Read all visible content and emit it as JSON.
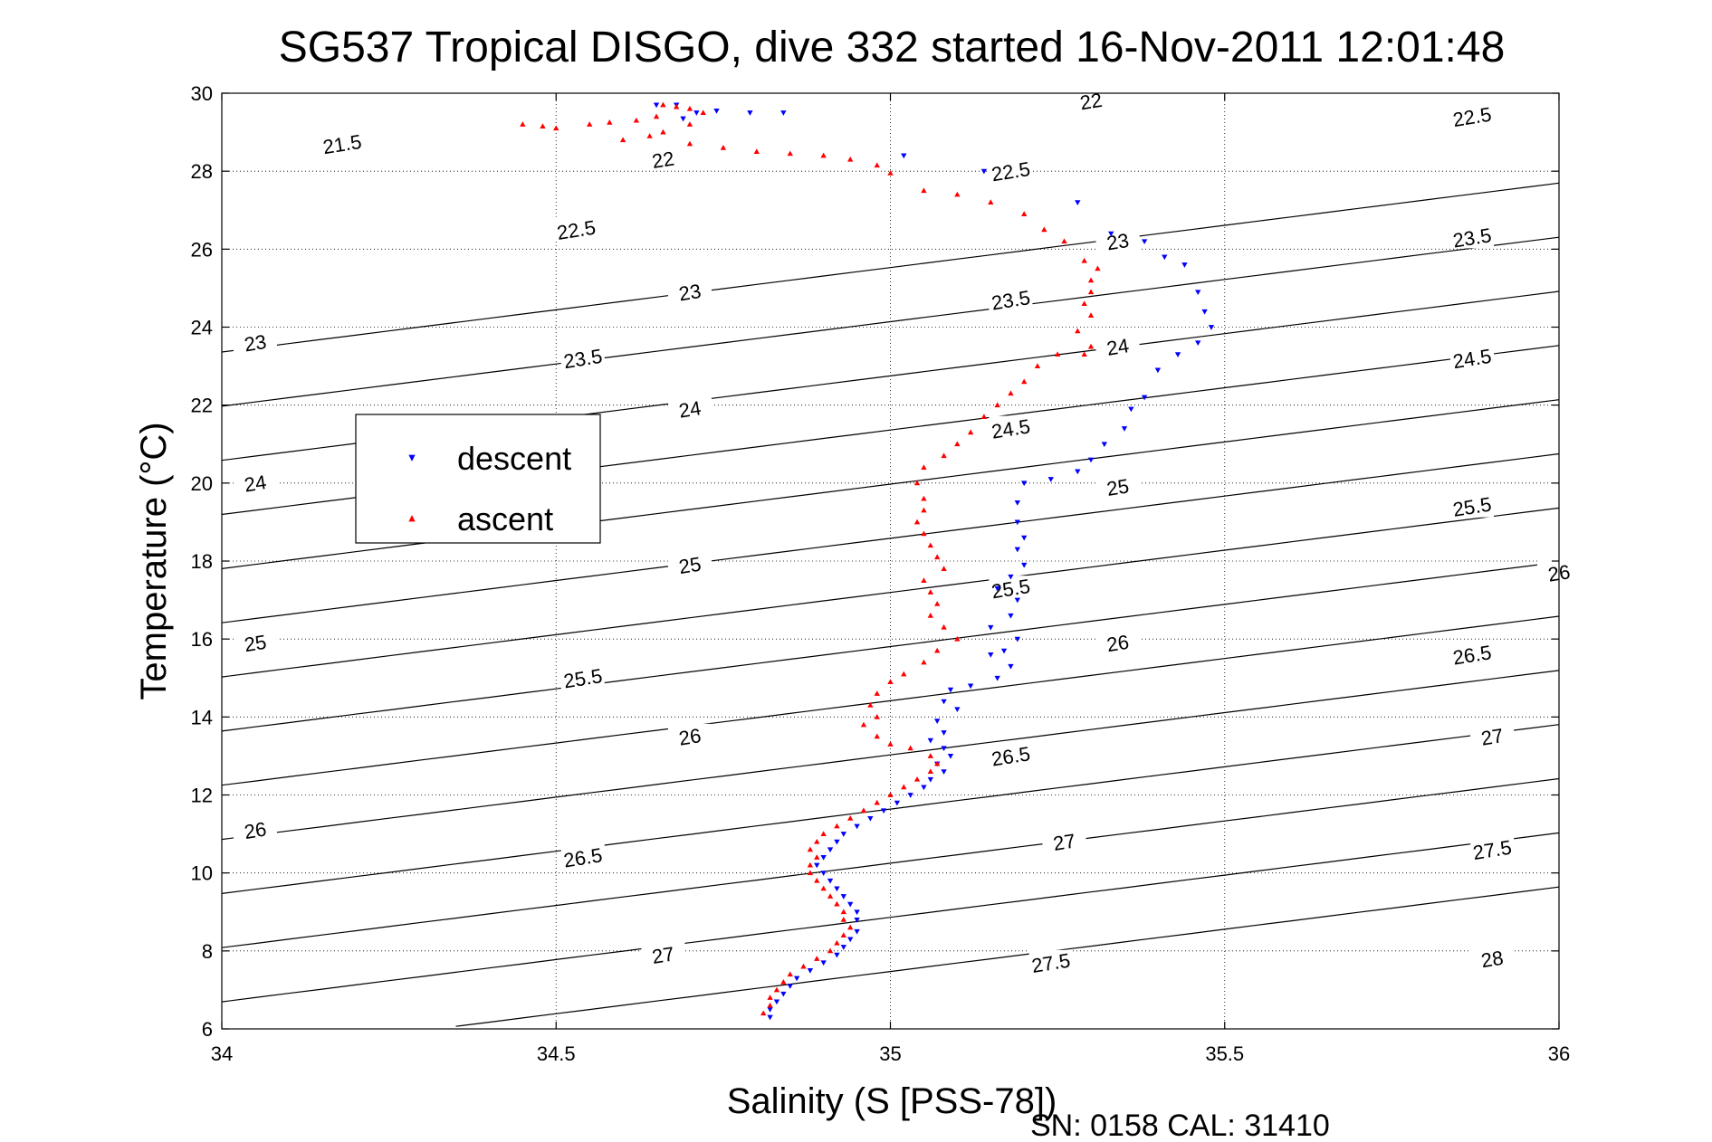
{
  "chart_data": {
    "type": "scatter",
    "title": "SG537 Tropical DISGO, dive 332 started 16-Nov-2011 12:01:48",
    "xlabel": "Salinity (S [PSS-78])",
    "ylabel": "Temperature (°C)",
    "footer": "SN: 0158  CAL: 31410",
    "xlim": [
      34,
      36
    ],
    "ylim": [
      6,
      30
    ],
    "xticks": [
      "34",
      "34.5",
      "35",
      "35.5",
      "36"
    ],
    "yticks": [
      "6",
      "8",
      "10",
      "12",
      "14",
      "16",
      "18",
      "20",
      "22",
      "24",
      "26",
      "28",
      "30"
    ],
    "grid": true,
    "legend_position": "left-middle",
    "isopycnals": {
      "levels": [
        21.5,
        22,
        22.5,
        23,
        23.5,
        24,
        24.5,
        25,
        25.5,
        26,
        26.5,
        27,
        27.5,
        28
      ],
      "labels": [
        {
          "text": "21.5",
          "x": 34.18,
          "y": 28.7
        },
        {
          "text": "22",
          "x": 34.66,
          "y": 28.3
        },
        {
          "text": "22",
          "x": 35.3,
          "y": 29.8
        },
        {
          "text": "22.5",
          "x": 34.53,
          "y": 26.5
        },
        {
          "text": "22.5",
          "x": 35.18,
          "y": 28.0
        },
        {
          "text": "22.5",
          "x": 35.87,
          "y": 29.4
        },
        {
          "text": "23",
          "x": 34.05,
          "y": 23.6
        },
        {
          "text": "23",
          "x": 34.7,
          "y": 24.9
        },
        {
          "text": "23",
          "x": 35.34,
          "y": 26.2
        },
        {
          "text": "23.5",
          "x": 34.54,
          "y": 23.2
        },
        {
          "text": "23.5",
          "x": 35.18,
          "y": 24.7
        },
        {
          "text": "23.5",
          "x": 35.87,
          "y": 26.3
        },
        {
          "text": "24",
          "x": 34.05,
          "y": 20.0
        },
        {
          "text": "24",
          "x": 34.7,
          "y": 21.9
        },
        {
          "text": "24",
          "x": 35.34,
          "y": 23.5
        },
        {
          "text": "24.5",
          "x": 35.18,
          "y": 21.4
        },
        {
          "text": "24.5",
          "x": 35.87,
          "y": 23.2
        },
        {
          "text": "25",
          "x": 34.05,
          "y": 15.9
        },
        {
          "text": "25",
          "x": 34.7,
          "y": 17.9
        },
        {
          "text": "25",
          "x": 35.34,
          "y": 19.9
        },
        {
          "text": "25.5",
          "x": 34.54,
          "y": 15.0
        },
        {
          "text": "25.5",
          "x": 35.18,
          "y": 17.3
        },
        {
          "text": "25.5",
          "x": 35.87,
          "y": 19.4
        },
        {
          "text": "26",
          "x": 34.05,
          "y": 11.1
        },
        {
          "text": "26",
          "x": 34.7,
          "y": 13.5
        },
        {
          "text": "26",
          "x": 35.34,
          "y": 15.9
        },
        {
          "text": "26",
          "x": 36.0,
          "y": 17.7
        },
        {
          "text": "26.5",
          "x": 34.54,
          "y": 10.4
        },
        {
          "text": "26.5",
          "x": 35.18,
          "y": 13.0
        },
        {
          "text": "26.5",
          "x": 35.87,
          "y": 15.6
        },
        {
          "text": "27",
          "x": 34.66,
          "y": 7.9
        },
        {
          "text": "27",
          "x": 35.26,
          "y": 10.8
        },
        {
          "text": "27",
          "x": 35.9,
          "y": 13.5
        },
        {
          "text": "27.5",
          "x": 35.24,
          "y": 7.7
        },
        {
          "text": "27.5",
          "x": 35.9,
          "y": 10.6
        },
        {
          "text": "28",
          "x": 35.9,
          "y": 7.8
        }
      ]
    },
    "series": [
      {
        "name": "descent",
        "color": "#0000ff",
        "marker": "triangle-down",
        "points": [
          [
            34.65,
            29.7
          ],
          [
            34.68,
            29.7
          ],
          [
            34.71,
            29.5
          ],
          [
            34.74,
            29.55
          ],
          [
            34.79,
            29.5
          ],
          [
            34.84,
            29.5
          ],
          [
            34.69,
            29.35
          ],
          [
            35.02,
            28.4
          ],
          [
            35.14,
            28.0
          ],
          [
            35.28,
            27.2
          ],
          [
            35.33,
            26.4
          ],
          [
            35.38,
            26.2
          ],
          [
            35.41,
            25.8
          ],
          [
            35.44,
            25.6
          ],
          [
            35.46,
            24.9
          ],
          [
            35.47,
            24.4
          ],
          [
            35.48,
            24.0
          ],
          [
            35.46,
            23.6
          ],
          [
            35.43,
            23.3
          ],
          [
            35.4,
            22.9
          ],
          [
            35.38,
            22.2
          ],
          [
            35.36,
            21.9
          ],
          [
            35.35,
            21.4
          ],
          [
            35.32,
            21.0
          ],
          [
            35.3,
            20.6
          ],
          [
            35.28,
            20.3
          ],
          [
            35.24,
            20.1
          ],
          [
            35.2,
            20.0
          ],
          [
            35.19,
            19.5
          ],
          [
            35.19,
            19.0
          ],
          [
            35.2,
            18.6
          ],
          [
            35.19,
            18.3
          ],
          [
            35.2,
            17.9
          ],
          [
            35.18,
            17.6
          ],
          [
            35.16,
            17.3
          ],
          [
            35.19,
            17.0
          ],
          [
            35.18,
            16.6
          ],
          [
            35.15,
            16.3
          ],
          [
            35.19,
            16.0
          ],
          [
            35.17,
            15.7
          ],
          [
            35.15,
            15.6
          ],
          [
            35.18,
            15.3
          ],
          [
            35.16,
            15.0
          ],
          [
            35.12,
            14.8
          ],
          [
            35.09,
            14.7
          ],
          [
            35.08,
            14.4
          ],
          [
            35.1,
            14.2
          ],
          [
            35.07,
            13.9
          ],
          [
            35.08,
            13.6
          ],
          [
            35.06,
            13.4
          ],
          [
            35.08,
            13.2
          ],
          [
            35.09,
            13.0
          ],
          [
            35.07,
            12.8
          ],
          [
            35.08,
            12.6
          ],
          [
            35.06,
            12.4
          ],
          [
            35.05,
            12.2
          ],
          [
            35.03,
            12.0
          ],
          [
            35.01,
            11.8
          ],
          [
            34.99,
            11.6
          ],
          [
            34.97,
            11.4
          ],
          [
            34.95,
            11.2
          ],
          [
            34.93,
            11.0
          ],
          [
            34.92,
            10.8
          ],
          [
            34.91,
            10.6
          ],
          [
            34.9,
            10.4
          ],
          [
            34.89,
            10.2
          ],
          [
            34.9,
            10.0
          ],
          [
            34.91,
            9.8
          ],
          [
            34.92,
            9.6
          ],
          [
            34.93,
            9.4
          ],
          [
            34.94,
            9.2
          ],
          [
            34.95,
            9.0
          ],
          [
            34.95,
            8.8
          ],
          [
            34.95,
            8.5
          ],
          [
            34.94,
            8.3
          ],
          [
            34.93,
            8.1
          ],
          [
            34.92,
            7.9
          ],
          [
            34.9,
            7.7
          ],
          [
            34.88,
            7.5
          ],
          [
            34.86,
            7.3
          ],
          [
            34.85,
            7.1
          ],
          [
            34.84,
            6.9
          ],
          [
            34.83,
            6.7
          ],
          [
            34.82,
            6.5
          ],
          [
            34.82,
            6.3
          ]
        ]
      },
      {
        "name": "ascent",
        "color": "#ff0000",
        "marker": "triangle-up",
        "points": [
          [
            34.45,
            29.2
          ],
          [
            34.48,
            29.15
          ],
          [
            34.5,
            29.1
          ],
          [
            34.55,
            29.2
          ],
          [
            34.58,
            29.25
          ],
          [
            34.62,
            29.3
          ],
          [
            34.65,
            29.4
          ],
          [
            34.66,
            29.7
          ],
          [
            34.68,
            29.65
          ],
          [
            34.7,
            29.6
          ],
          [
            34.72,
            29.5
          ],
          [
            34.7,
            29.2
          ],
          [
            34.66,
            29.0
          ],
          [
            34.6,
            28.8
          ],
          [
            34.64,
            28.9
          ],
          [
            34.7,
            28.7
          ],
          [
            34.75,
            28.6
          ],
          [
            34.8,
            28.5
          ],
          [
            34.85,
            28.45
          ],
          [
            34.9,
            28.4
          ],
          [
            34.94,
            28.3
          ],
          [
            34.98,
            28.15
          ],
          [
            35.0,
            27.95
          ],
          [
            35.05,
            27.5
          ],
          [
            35.1,
            27.4
          ],
          [
            35.15,
            27.2
          ],
          [
            35.2,
            26.9
          ],
          [
            35.23,
            26.5
          ],
          [
            35.26,
            26.2
          ],
          [
            35.29,
            25.7
          ],
          [
            35.31,
            25.5
          ],
          [
            35.3,
            25.2
          ],
          [
            35.3,
            24.9
          ],
          [
            35.29,
            24.6
          ],
          [
            35.3,
            24.3
          ],
          [
            35.28,
            23.9
          ],
          [
            35.3,
            23.5
          ],
          [
            35.29,
            23.3
          ],
          [
            35.25,
            23.3
          ],
          [
            35.22,
            23.0
          ],
          [
            35.2,
            22.6
          ],
          [
            35.18,
            22.3
          ],
          [
            35.16,
            22.0
          ],
          [
            35.14,
            21.7
          ],
          [
            35.12,
            21.3
          ],
          [
            35.1,
            21.0
          ],
          [
            35.08,
            20.7
          ],
          [
            35.05,
            20.4
          ],
          [
            35.04,
            20.0
          ],
          [
            35.05,
            19.6
          ],
          [
            35.05,
            19.3
          ],
          [
            35.04,
            19.0
          ],
          [
            35.05,
            18.7
          ],
          [
            35.06,
            18.4
          ],
          [
            35.07,
            18.1
          ],
          [
            35.08,
            17.8
          ],
          [
            35.05,
            17.5
          ],
          [
            35.06,
            17.2
          ],
          [
            35.07,
            16.9
          ],
          [
            35.06,
            16.6
          ],
          [
            35.08,
            16.3
          ],
          [
            35.1,
            16.0
          ],
          [
            35.07,
            15.7
          ],
          [
            35.05,
            15.4
          ],
          [
            35.02,
            15.1
          ],
          [
            35.0,
            14.9
          ],
          [
            34.98,
            14.6
          ],
          [
            34.97,
            14.3
          ],
          [
            34.98,
            14.0
          ],
          [
            34.96,
            13.8
          ],
          [
            34.98,
            13.5
          ],
          [
            35.0,
            13.3
          ],
          [
            35.03,
            13.2
          ],
          [
            35.06,
            13.0
          ],
          [
            35.07,
            12.8
          ],
          [
            35.06,
            12.6
          ],
          [
            35.04,
            12.4
          ],
          [
            35.02,
            12.2
          ],
          [
            35.0,
            12.0
          ],
          [
            34.98,
            11.8
          ],
          [
            34.96,
            11.6
          ],
          [
            34.94,
            11.4
          ],
          [
            34.92,
            11.2
          ],
          [
            34.9,
            11.0
          ],
          [
            34.89,
            10.8
          ],
          [
            34.88,
            10.6
          ],
          [
            34.89,
            10.4
          ],
          [
            34.88,
            10.2
          ],
          [
            34.88,
            10.0
          ],
          [
            34.89,
            9.8
          ],
          [
            34.9,
            9.6
          ],
          [
            34.91,
            9.4
          ],
          [
            34.92,
            9.2
          ],
          [
            34.93,
            9.0
          ],
          [
            34.93,
            8.8
          ],
          [
            34.94,
            8.6
          ],
          [
            34.93,
            8.4
          ],
          [
            34.92,
            8.2
          ],
          [
            34.91,
            8.0
          ],
          [
            34.89,
            7.8
          ],
          [
            34.87,
            7.6
          ],
          [
            34.85,
            7.4
          ],
          [
            34.84,
            7.2
          ],
          [
            34.83,
            7.0
          ],
          [
            34.82,
            6.8
          ],
          [
            34.82,
            6.6
          ],
          [
            34.81,
            6.4
          ]
        ]
      }
    ]
  }
}
